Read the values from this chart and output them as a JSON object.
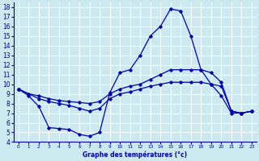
{
  "title": "Graphe des températures (°c)",
  "bg_color": "#cce9f0",
  "grid_color": "#ffffff",
  "line_color": "#0000aa",
  "xlim": [
    -0.5,
    23.5
  ],
  "ylim": [
    4,
    18.5
  ],
  "xticks": [
    0,
    1,
    2,
    3,
    4,
    5,
    6,
    7,
    8,
    9,
    10,
    11,
    12,
    13,
    14,
    15,
    16,
    17,
    18,
    19,
    20,
    21,
    22,
    23
  ],
  "yticks": [
    4,
    5,
    6,
    7,
    8,
    9,
    10,
    11,
    12,
    13,
    14,
    15,
    16,
    17,
    18
  ],
  "curve1_x": [
    0,
    1,
    2,
    3,
    4,
    5,
    6,
    7,
    8,
    9,
    10,
    11,
    12,
    13,
    14,
    15,
    16,
    17,
    18,
    19,
    20,
    21,
    22,
    23
  ],
  "curve1_y": [
    9.5,
    8.8,
    7.7,
    5.5,
    5.4,
    5.3,
    4.8,
    4.6,
    5.0,
    9.1,
    11.2,
    11.5,
    13.0,
    15.0,
    16.0,
    17.8,
    17.6,
    15.0,
    11.5,
    10.0,
    8.8,
    7.0,
    7.0,
    7.2
  ],
  "curve2_x": [
    0,
    1,
    2,
    3,
    4,
    5,
    6,
    7,
    8,
    9,
    10,
    11,
    12,
    13,
    14,
    15,
    16,
    17,
    18,
    19,
    20,
    21,
    22,
    23
  ],
  "curve2_y": [
    9.5,
    9.0,
    8.8,
    8.5,
    8.3,
    8.2,
    8.1,
    8.0,
    8.2,
    9.0,
    9.5,
    9.8,
    10.0,
    10.5,
    11.0,
    11.5,
    11.5,
    11.5,
    11.5,
    11.2,
    10.2,
    7.2,
    7.0,
    7.2
  ],
  "curve3_x": [
    0,
    1,
    2,
    3,
    4,
    5,
    6,
    7,
    8,
    9,
    10,
    11,
    12,
    13,
    14,
    15,
    16,
    17,
    18,
    19,
    20,
    21,
    22,
    23
  ],
  "curve3_y": [
    9.5,
    9.0,
    8.5,
    8.2,
    8.0,
    7.8,
    7.5,
    7.2,
    7.5,
    8.5,
    9.0,
    9.2,
    9.5,
    9.8,
    10.0,
    10.2,
    10.2,
    10.2,
    10.2,
    10.0,
    9.8,
    7.2,
    7.0,
    7.2
  ]
}
